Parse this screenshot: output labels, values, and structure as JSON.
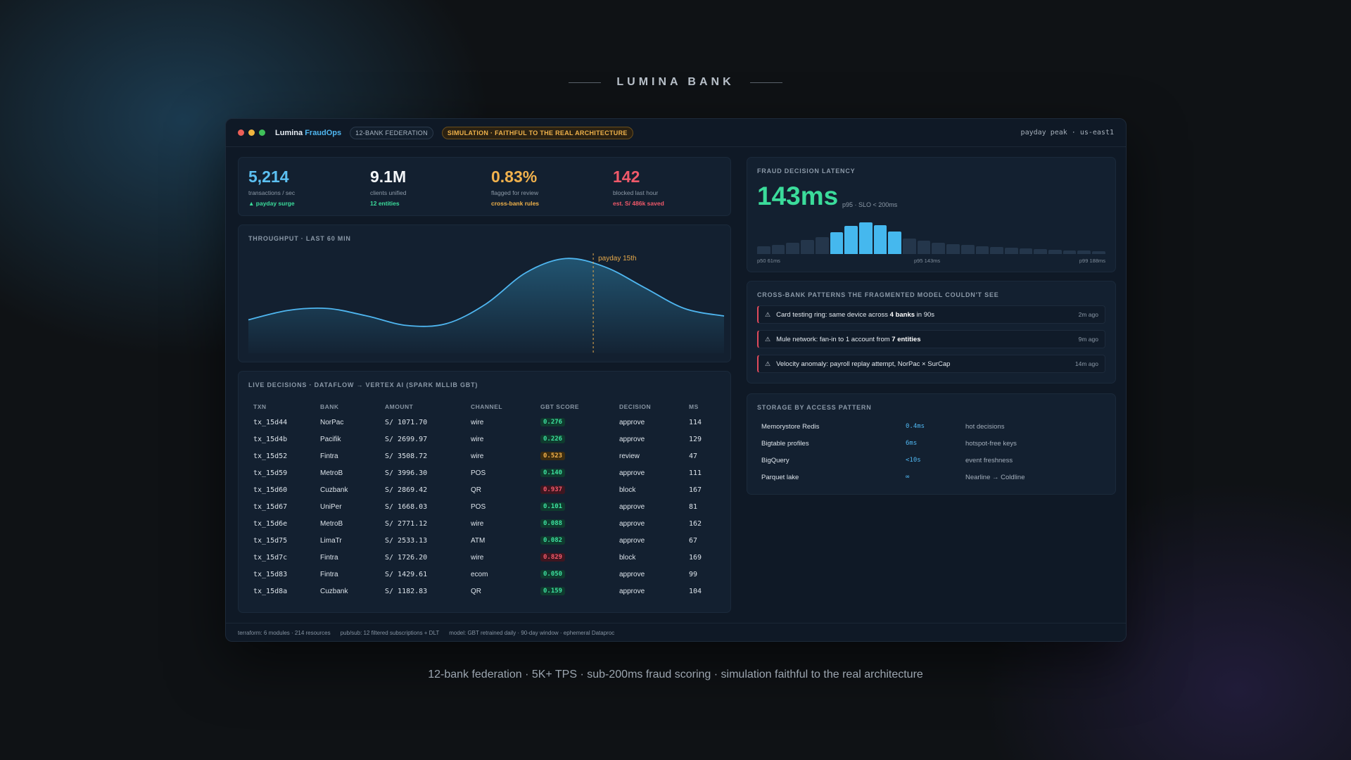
{
  "brand": "LUMINA BANK",
  "app": {
    "name": "Lumina",
    "name_accent": "FraudOps",
    "badge_federation": "12-BANK FEDERATION",
    "badge_simulation": "SIMULATION · FAITHFUL TO THE REAL ARCHITECTURE",
    "region": "payday peak · us-east1"
  },
  "colors": {
    "accent_blue": "#4fb6f0",
    "green": "#3bdc9b",
    "amber": "#f0b24a",
    "red": "#f0596a"
  },
  "kpis": [
    {
      "value": "5,214",
      "label": "transactions / sec",
      "note": "▲ payday surge",
      "color": "#5cc0f2",
      "note_color": "#3bdc9b"
    },
    {
      "value": "9.1M",
      "label": "clients unified",
      "note": "12 entities",
      "color": "#f3f6f9",
      "note_color": "#3bdc9b"
    },
    {
      "value": "0.83%",
      "label": "flagged for review",
      "note": "cross-bank rules",
      "color": "#f2b24d",
      "note_color": "#f0b24a"
    },
    {
      "value": "142",
      "label": "blocked last hour",
      "note": "est. S/ 486k saved",
      "color": "#f0596a",
      "note_color": "#f0596a"
    }
  ],
  "throughput": {
    "title": "THROUGHPUT · LAST 60 MIN",
    "annotation": "payday 15th"
  },
  "chart_data": {
    "type": "area",
    "title": "THROUGHPUT · LAST 60 MIN",
    "x": [
      0,
      5,
      10,
      15,
      20,
      25,
      30,
      35,
      40,
      45,
      50,
      55,
      60
    ],
    "values": [
      0.28,
      0.38,
      0.4,
      0.32,
      0.22,
      0.24,
      0.45,
      0.78,
      0.93,
      0.84,
      0.62,
      0.4,
      0.32
    ],
    "annotation": {
      "label": "payday 15th",
      "x": 43.5
    }
  },
  "latency": {
    "title": "FRAUD DECISION LATENCY",
    "value": "143ms",
    "sub": "p95 · SLO < 200ms",
    "histogram": [
      0.25,
      0.3,
      0.36,
      0.44,
      0.54,
      0.7,
      0.88,
      1.0,
      0.92,
      0.72,
      0.5,
      0.42,
      0.36,
      0.32,
      0.28,
      0.24,
      0.22,
      0.2,
      0.17,
      0.15,
      0.13,
      0.12,
      0.11,
      0.1
    ],
    "highlight": [
      5,
      6,
      7,
      8,
      9
    ],
    "labels": [
      "p50 61ms",
      "p95 143ms",
      "p99 188ms"
    ]
  },
  "patterns": {
    "title": "CROSS-BANK PATTERNS THE FRAGMENTED MODEL COULDN'T SEE",
    "items": [
      {
        "pre": "Card testing ring: same device across ",
        "bold": "4 banks",
        "post": " in 90s",
        "time": "2m ago"
      },
      {
        "pre": "Mule network: fan-in to 1 account from ",
        "bold": "7 entities",
        "post": "",
        "time": "9m ago"
      },
      {
        "pre": "Velocity anomaly: payroll replay attempt, NorPac × SurCap",
        "bold": "",
        "post": "",
        "time": "14m ago"
      }
    ]
  },
  "storage": {
    "title": "STORAGE BY ACCESS PATTERN",
    "rows": [
      {
        "name": "Memorystore Redis",
        "latency": "0.4ms",
        "note": "hot decisions"
      },
      {
        "name": "Bigtable profiles",
        "latency": "6ms",
        "note": "hotspot-free keys"
      },
      {
        "name": "BigQuery",
        "latency": "<10s",
        "note": "event freshness"
      },
      {
        "name": "Parquet lake",
        "latency": "∞",
        "note": "Nearline → Coldline"
      }
    ]
  },
  "decisions": {
    "title": "LIVE DECISIONS · DATAFLOW → VERTEX AI (SPARK MLLIB GBT)",
    "headers": [
      "TXN",
      "BANK",
      "AMOUNT",
      "CHANNEL",
      "GBT SCORE",
      "DECISION",
      "MS"
    ],
    "rows": [
      {
        "txn": "tx_15d44",
        "bank": "NorPac",
        "amount": "S/ 1071.70",
        "channel": "wire",
        "score": "0.276",
        "level": "low",
        "decision": "approve",
        "ms": "114"
      },
      {
        "txn": "tx_15d4b",
        "bank": "Pacifik",
        "amount": "S/ 2699.97",
        "channel": "wire",
        "score": "0.226",
        "level": "low",
        "decision": "approve",
        "ms": "129"
      },
      {
        "txn": "tx_15d52",
        "bank": "Fintra",
        "amount": "S/ 3508.72",
        "channel": "wire",
        "score": "0.523",
        "level": "mid",
        "decision": "review",
        "ms": "47"
      },
      {
        "txn": "tx_15d59",
        "bank": "MetroB",
        "amount": "S/ 3996.30",
        "channel": "POS",
        "score": "0.140",
        "level": "low",
        "decision": "approve",
        "ms": "111"
      },
      {
        "txn": "tx_15d60",
        "bank": "Cuzbank",
        "amount": "S/ 2869.42",
        "channel": "QR",
        "score": "0.937",
        "level": "high",
        "decision": "block",
        "ms": "167"
      },
      {
        "txn": "tx_15d67",
        "bank": "UniPer",
        "amount": "S/ 1668.03",
        "channel": "POS",
        "score": "0.101",
        "level": "low",
        "decision": "approve",
        "ms": "81"
      },
      {
        "txn": "tx_15d6e",
        "bank": "MetroB",
        "amount": "S/ 2771.12",
        "channel": "wire",
        "score": "0.088",
        "level": "low",
        "decision": "approve",
        "ms": "162"
      },
      {
        "txn": "tx_15d75",
        "bank": "LimaTr",
        "amount": "S/ 2533.13",
        "channel": "ATM",
        "score": "0.082",
        "level": "low",
        "decision": "approve",
        "ms": "67"
      },
      {
        "txn": "tx_15d7c",
        "bank": "Fintra",
        "amount": "S/ 1726.20",
        "channel": "wire",
        "score": "0.829",
        "level": "high",
        "decision": "block",
        "ms": "169"
      },
      {
        "txn": "tx_15d83",
        "bank": "Fintra",
        "amount": "S/ 1429.61",
        "channel": "ecom",
        "score": "0.050",
        "level": "low",
        "decision": "approve",
        "ms": "99"
      },
      {
        "txn": "tx_15d8a",
        "bank": "Cuzbank",
        "amount": "S/ 1182.83",
        "channel": "QR",
        "score": "0.159",
        "level": "low",
        "decision": "approve",
        "ms": "104"
      }
    ]
  },
  "footer": [
    "terraform: 6 modules · 214 resources",
    "pub/sub: 12 filtered subscriptions + DLT",
    "model: GBT retrained daily · 90-day window · ephemeral Dataproc"
  ],
  "tagline": "12-bank federation · 5K+ TPS · sub-200ms fraud scoring · simulation faithful to the real architecture"
}
